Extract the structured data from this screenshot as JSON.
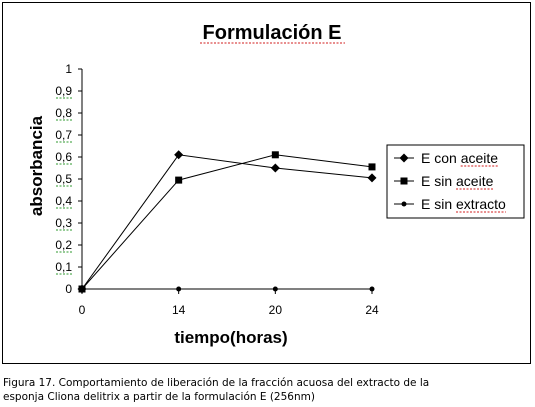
{
  "chart_data": {
    "type": "line",
    "title": "Formulación E",
    "xlabel": "tiempo(horas)",
    "ylabel": "absorbancia",
    "categories": [
      "0",
      "14",
      "20",
      "24"
    ],
    "ylim": [
      0,
      1
    ],
    "yticks": [
      "0",
      "0,1",
      "0,2",
      "0,3",
      "0,4",
      "0,5",
      "0,6",
      "0,7",
      "0,8",
      "0,9",
      "1"
    ],
    "grid": false,
    "legend_position": "right",
    "series": [
      {
        "name": "E con aceite",
        "marker": "diamond",
        "values": [
          0,
          0.61,
          0.55,
          0.505
        ]
      },
      {
        "name": "E sin aceite",
        "marker": "square",
        "values": [
          0,
          0.495,
          0.61,
          0.555
        ]
      },
      {
        "name": "E sin extracto",
        "marker": "circle",
        "values": [
          0,
          0,
          0,
          0
        ]
      }
    ]
  },
  "caption": {
    "line1": "Figura 17. Comportamiento de liberación de la fracción acuosa del extracto  de la",
    "line2": "esponja Cliona delitrix a partir de la formulación  E (256nm)"
  }
}
